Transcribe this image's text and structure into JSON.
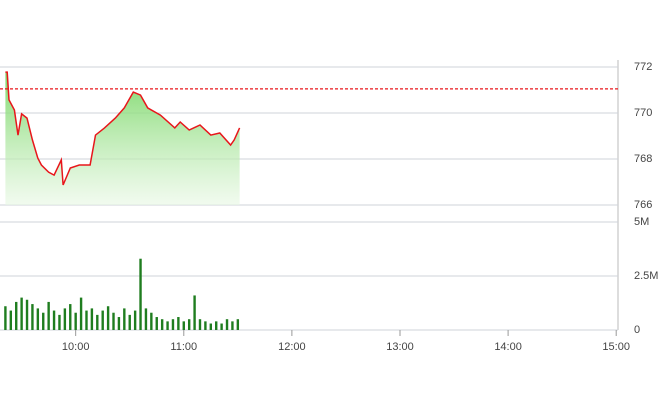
{
  "chart_data": [
    {
      "type": "line",
      "color": "#e8161b",
      "area_color": "#7fdc6a",
      "reference": 771.05,
      "reference_color": "#e8161b",
      "x": [
        561,
        562,
        563,
        566,
        568,
        570,
        573,
        576,
        579,
        581,
        585,
        588,
        592,
        593,
        597,
        602,
        608,
        611,
        616,
        622,
        627,
        632,
        636,
        640,
        647,
        655,
        658,
        663,
        669,
        675,
        680,
        686,
        688,
        691
      ],
      "values": [
        771.78,
        771.78,
        770.57,
        770.13,
        769.04,
        769.96,
        769.78,
        768.83,
        768.04,
        767.74,
        767.43,
        767.3,
        767.96,
        766.87,
        767.61,
        767.74,
        767.74,
        769.04,
        769.35,
        769.78,
        770.22,
        770.91,
        770.78,
        770.22,
        769.91,
        769.35,
        769.61,
        769.26,
        769.48,
        769.04,
        769.13,
        768.61,
        768.83,
        769.35
      ],
      "xlim": [
        558,
        901
      ],
      "ylim": [
        766,
        772
      ],
      "yticks": [
        766,
        768,
        770,
        772
      ],
      "grid": true
    },
    {
      "type": "bar",
      "color": "#1f7d1f",
      "x": [
        561,
        564,
        567,
        570,
        573,
        576,
        579,
        582,
        585,
        588,
        591,
        594,
        597,
        600,
        603,
        606,
        609,
        612,
        615,
        618,
        621,
        624,
        627,
        630,
        633,
        636,
        639,
        642,
        645,
        648,
        651,
        654,
        657,
        660,
        663,
        666,
        669,
        672,
        675,
        678,
        681,
        684,
        687,
        690
      ],
      "values": [
        1100000,
        900000,
        1300000,
        1500000,
        1400000,
        1200000,
        1000000,
        800000,
        1300000,
        900000,
        700000,
        1000000,
        1200000,
        800000,
        1500000,
        900000,
        1000000,
        700000,
        900000,
        1100000,
        800000,
        600000,
        1000000,
        700000,
        900000,
        3300000,
        1000000,
        800000,
        600000,
        500000,
        400000,
        500000,
        600000,
        400000,
        500000,
        1600000,
        500000,
        400000,
        300000,
        400000,
        300000,
        500000,
        400000,
        500000
      ],
      "xlim": [
        558,
        901
      ],
      "ylim": [
        0,
        5000000
      ],
      "yticks": [
        0,
        {
          "value": 2500000,
          "label": "2.5M"
        },
        {
          "value": 5000000,
          "label": "5M"
        }
      ],
      "xticks": [
        {
          "value": 600,
          "label": "10:00"
        },
        {
          "value": 660,
          "label": "11:00"
        },
        {
          "value": 720,
          "label": "12:00"
        },
        {
          "value": 780,
          "label": "13:00"
        },
        {
          "value": 840,
          "label": "14:00"
        },
        {
          "value": 900,
          "label": "15:00"
        }
      ],
      "grid": true
    }
  ]
}
